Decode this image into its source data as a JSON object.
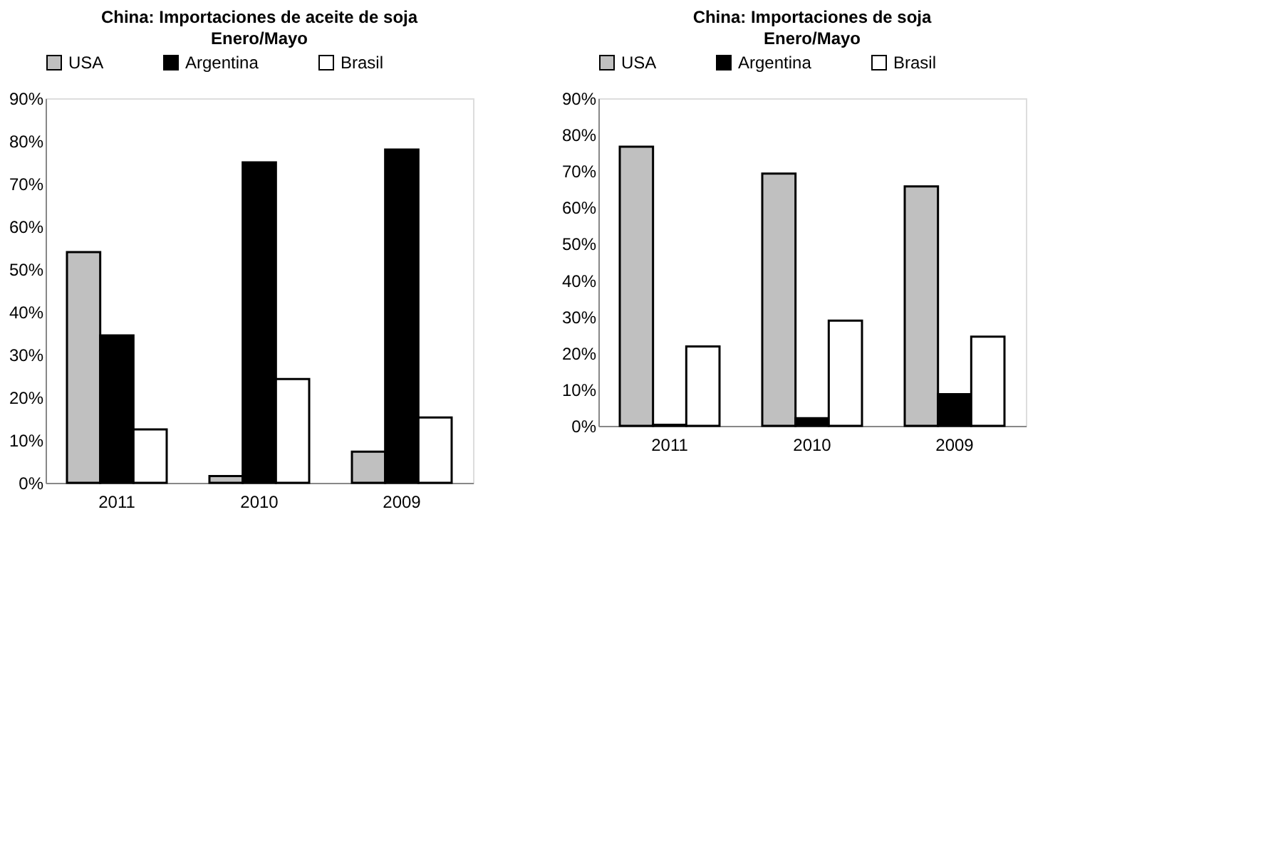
{
  "chart_data": [
    {
      "type": "bar",
      "title": "China: Importaciones de aceite de soja",
      "subtitle": "Enero/Mayo",
      "categories": [
        "2011",
        "2010",
        "2009"
      ],
      "series": [
        {
          "name": "USA",
          "color": "#c0c0c0",
          "values": [
            54,
            1.6,
            7.3
          ]
        },
        {
          "name": "Argentina",
          "color": "#000000",
          "values": [
            34.5,
            75,
            78
          ]
        },
        {
          "name": "Brasil",
          "color": "#ffffff",
          "values": [
            12.5,
            24.3,
            15.3
          ]
        }
      ],
      "ylim": [
        0,
        90
      ],
      "yticks": [
        {
          "value": 0,
          "label": "0%"
        },
        {
          "value": 10,
          "label": "10%"
        },
        {
          "value": 20,
          "label": "20%"
        },
        {
          "value": 30,
          "label": "30%"
        },
        {
          "value": 40,
          "label": "40%"
        },
        {
          "value": 50,
          "label": "50%"
        },
        {
          "value": 60,
          "label": "60%"
        },
        {
          "value": 70,
          "label": "70%"
        },
        {
          "value": 80,
          "label": "80%"
        },
        {
          "value": 90,
          "label": "90%"
        }
      ],
      "grid": false,
      "legend": "top"
    },
    {
      "type": "bar",
      "title": "China: Importaciones de soja",
      "subtitle": "Enero/Mayo",
      "categories": [
        "2011",
        "2010",
        "2009"
      ],
      "series": [
        {
          "name": "USA",
          "color": "#c0c0c0",
          "values": [
            76.7,
            69.3,
            65.8
          ]
        },
        {
          "name": "Argentina",
          "color": "#000000",
          "values": [
            0.3,
            2.1,
            8.7
          ]
        },
        {
          "name": "Brasil",
          "color": "#ffffff",
          "values": [
            21.8,
            28.9,
            24.5
          ]
        }
      ],
      "ylim": [
        0,
        90
      ],
      "yticks": [
        {
          "value": 0,
          "label": "0%"
        },
        {
          "value": 10,
          "label": "10%"
        },
        {
          "value": 20,
          "label": "20%"
        },
        {
          "value": 30,
          "label": "30%"
        },
        {
          "value": 40,
          "label": "40%"
        },
        {
          "value": 50,
          "label": "50%"
        },
        {
          "value": 60,
          "label": "60%"
        },
        {
          "value": 70,
          "label": "70%"
        },
        {
          "value": 80,
          "label": "80%"
        },
        {
          "value": 90,
          "label": "90%"
        }
      ],
      "grid": false,
      "legend": "top"
    }
  ]
}
